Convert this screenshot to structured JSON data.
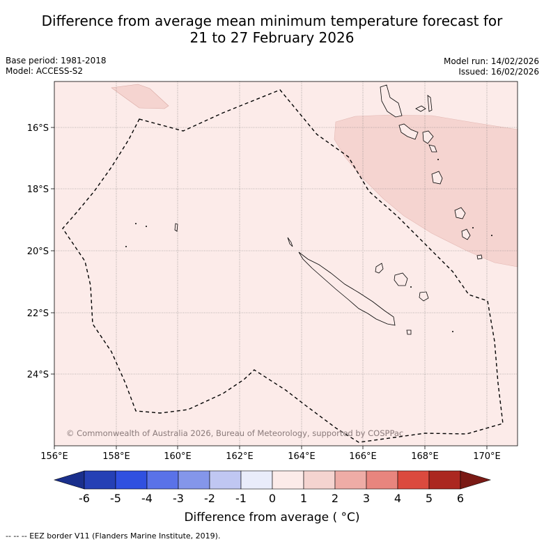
{
  "header": {
    "title_line1": "Difference from average mean minimum temperature forecast for",
    "title_line2": "21 to 27 February 2026"
  },
  "meta": {
    "base_period": "Base period: 1981-2018",
    "model": "Model: ACCESS-S2",
    "model_run": "Model run: 14/02/2026",
    "issued": "Issued: 16/02/2026"
  },
  "map": {
    "lon_range": [
      156.0,
      171.0
    ],
    "lat_range": [
      -26.3,
      -14.5
    ],
    "lon_ticks": [
      "156°E",
      "158°E",
      "160°E",
      "162°E",
      "164°E",
      "166°E",
      "168°E",
      "170°E"
    ],
    "lat_ticks": [
      "16°S",
      "18°S",
      "20°S",
      "22°S",
      "24°S"
    ],
    "background_anomaly_class": "0 to 1",
    "warm_region_anomaly_class": "1 to 2",
    "copyright": "© Commonwealth of Australia 2026, Bureau of Meteorology, supported by COSPPac"
  },
  "colorbar": {
    "labels": [
      "-6",
      "-5",
      "-4",
      "-3",
      "-2",
      "-1",
      "0",
      "1",
      "2",
      "3",
      "4",
      "5",
      "6"
    ],
    "colors": [
      "#1a2f8c",
      "#2540b5",
      "#3050e0",
      "#5a72e8",
      "#8496ea",
      "#c0c7f2",
      "#e9ecfa",
      "#fcebe9",
      "#f5d4d0",
      "#eeaca6",
      "#e8857e",
      "#db4a3e",
      "#ab2720",
      "#7a1a15"
    ],
    "title": "Difference from average ( °C)"
  },
  "footnote": "--  --  -- EEZ border V11 (Flanders Marine Institute, 2019)."
}
